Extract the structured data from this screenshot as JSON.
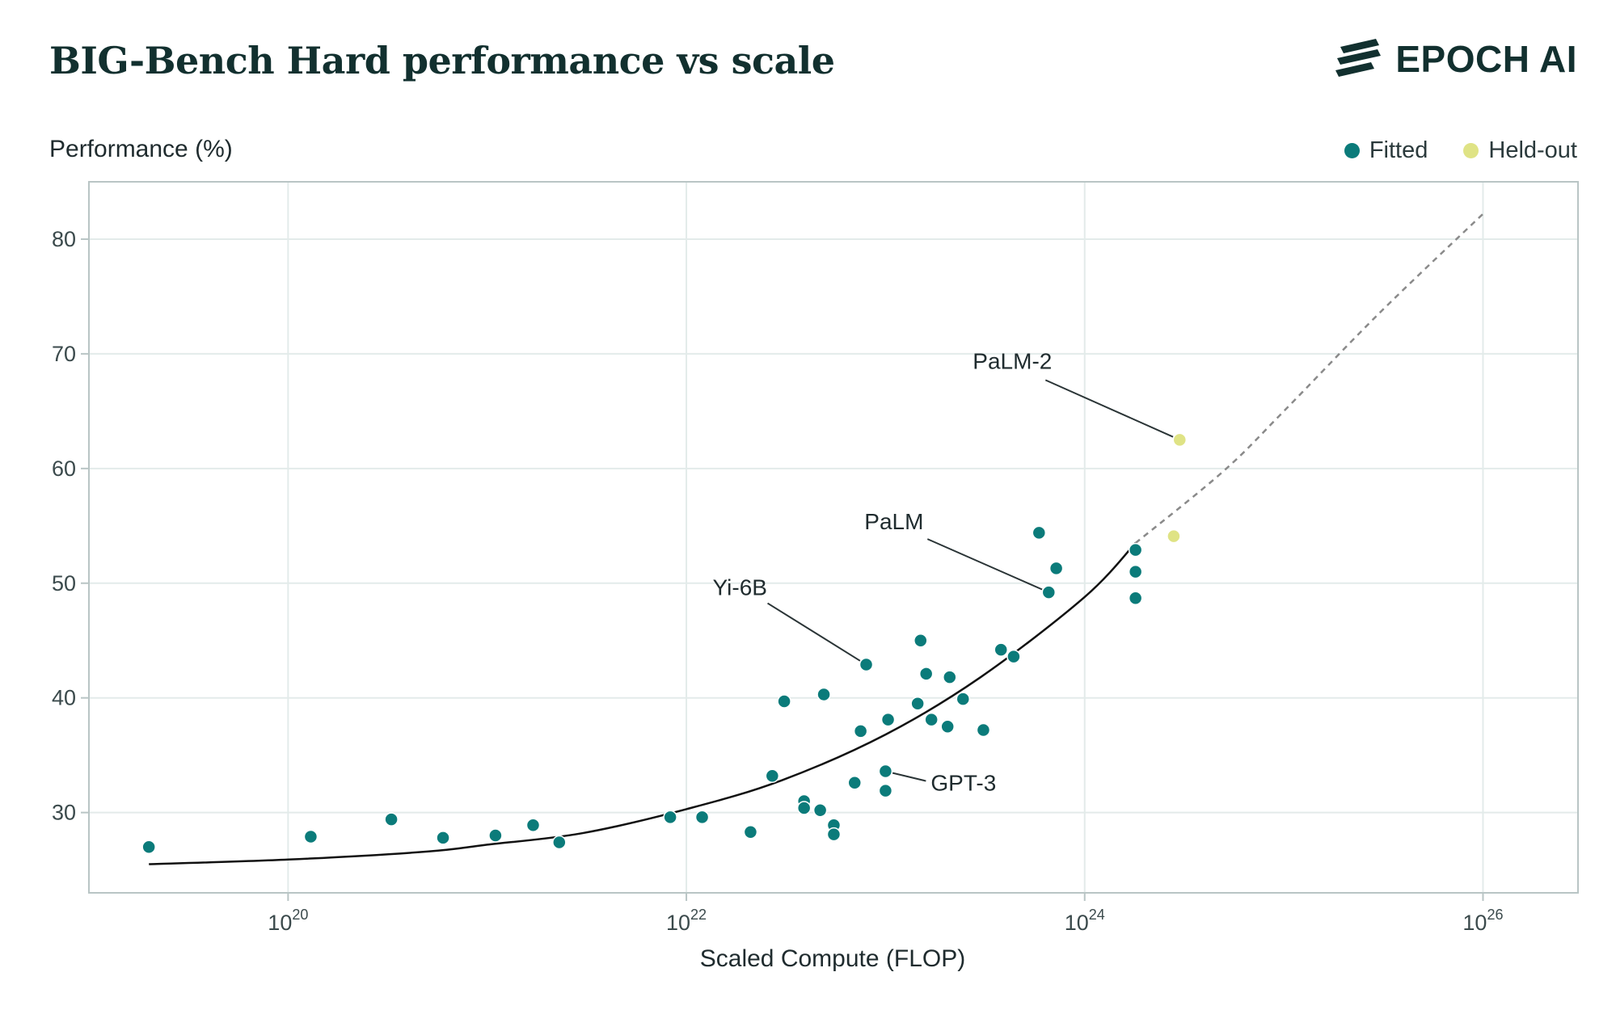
{
  "header": {
    "title": "BIG-Bench Hard performance vs scale",
    "brand": "EPOCH AI",
    "brand_icon": "epoch-stripes-logo"
  },
  "colors": {
    "fitted": "#0b7b7a",
    "heldout": "#dfe385",
    "fit_line": "#111111",
    "extrapolation": "#8a8a8a",
    "grid": "#e3ebea",
    "frame": "#b9c5c5"
  },
  "chart_data": {
    "type": "scatter",
    "title": "BIG-Bench Hard performance vs scale",
    "xlabel": "Scaled Compute (FLOP)",
    "ylabel": "Performance (%)",
    "x_scale": "log10",
    "xlim": [
      1e+19,
      3e+26
    ],
    "ylim": [
      23,
      85
    ],
    "x_ticks": [
      {
        "value": 1e+20,
        "base": "10",
        "exp": "20"
      },
      {
        "value": 1e+22,
        "base": "10",
        "exp": "22"
      },
      {
        "value": 1e+24,
        "base": "10",
        "exp": "24"
      },
      {
        "value": 1e+26,
        "base": "10",
        "exp": "26"
      }
    ],
    "y_ticks": [
      30,
      40,
      50,
      60,
      70,
      80
    ],
    "grid": true,
    "legend_position": "top-right",
    "legend": [
      "Fitted",
      "Held-out"
    ],
    "series": [
      {
        "name": "Fitted",
        "points": [
          {
            "x": 2e+19,
            "y": 27.0
          },
          {
            "x": 1.3e+20,
            "y": 27.9
          },
          {
            "x": 3.3e+20,
            "y": 29.4
          },
          {
            "x": 6e+20,
            "y": 27.8
          },
          {
            "x": 1.1e+21,
            "y": 28.0
          },
          {
            "x": 1.7e+21,
            "y": 28.9
          },
          {
            "x": 2.3e+21,
            "y": 27.4
          },
          {
            "x": 8.3e+21,
            "y": 29.6
          },
          {
            "x": 1.2e+22,
            "y": 29.6
          },
          {
            "x": 2.1e+22,
            "y": 28.3
          },
          {
            "x": 2.7e+22,
            "y": 33.2
          },
          {
            "x": 3.1e+22,
            "y": 39.7
          },
          {
            "x": 3.9e+22,
            "y": 31.0
          },
          {
            "x": 3.9e+22,
            "y": 30.4
          },
          {
            "x": 4.7e+22,
            "y": 30.2
          },
          {
            "x": 4.9e+22,
            "y": 40.3
          },
          {
            "x": 5.5e+22,
            "y": 28.9
          },
          {
            "x": 5.5e+22,
            "y": 28.1
          },
          {
            "x": 7e+22,
            "y": 32.6
          },
          {
            "x": 7.5e+22,
            "y": 37.1
          },
          {
            "x": 8e+22,
            "y": 42.9
          },
          {
            "x": 1e+23,
            "y": 33.6
          },
          {
            "x": 1e+23,
            "y": 31.9
          },
          {
            "x": 1.03e+23,
            "y": 38.1
          },
          {
            "x": 1.45e+23,
            "y": 39.5
          },
          {
            "x": 1.5e+23,
            "y": 45.0
          },
          {
            "x": 1.6e+23,
            "y": 42.1
          },
          {
            "x": 1.7e+23,
            "y": 38.1
          },
          {
            "x": 2.05e+23,
            "y": 37.5
          },
          {
            "x": 2.1e+23,
            "y": 41.8
          },
          {
            "x": 2.45e+23,
            "y": 39.9
          },
          {
            "x": 3.1e+23,
            "y": 37.2
          },
          {
            "x": 3.8e+23,
            "y": 44.2
          },
          {
            "x": 4.4e+23,
            "y": 43.6
          },
          {
            "x": 5.9e+23,
            "y": 54.4
          },
          {
            "x": 6.6e+23,
            "y": 49.2
          },
          {
            "x": 7.2e+23,
            "y": 51.3
          },
          {
            "x": 1.8e+24,
            "y": 52.9
          },
          {
            "x": 1.8e+24,
            "y": 51.0
          },
          {
            "x": 1.8e+24,
            "y": 48.7
          }
        ]
      },
      {
        "name": "Held-out",
        "points": [
          {
            "x": 3e+24,
            "y": 62.5
          },
          {
            "x": 2.8e+24,
            "y": 54.1
          }
        ]
      }
    ],
    "fit_curve": [
      {
        "x": 2e+19,
        "y": 25.5
      },
      {
        "x": 1e+20,
        "y": 25.9
      },
      {
        "x": 5e+20,
        "y": 26.6
      },
      {
        "x": 1e+21,
        "y": 27.2
      },
      {
        "x": 3e+21,
        "y": 28.2
      },
      {
        "x": 1e+22,
        "y": 30.3
      },
      {
        "x": 3e+22,
        "y": 32.8
      },
      {
        "x": 1e+23,
        "y": 36.8
      },
      {
        "x": 3e+23,
        "y": 41.8
      },
      {
        "x": 1e+24,
        "y": 48.8
      },
      {
        "x": 1.8e+24,
        "y": 53.5
      }
    ],
    "extrapolation_curve": [
      {
        "x": 1.8e+24,
        "y": 53.5
      },
      {
        "x": 5e+24,
        "y": 59.8
      },
      {
        "x": 1e+25,
        "y": 65.0
      },
      {
        "x": 3e+25,
        "y": 73.5
      },
      {
        "x": 1e+26,
        "y": 82.2
      }
    ],
    "annotations": [
      {
        "label": "PaLM-2",
        "x": 3e+24,
        "y": 62.5
      },
      {
        "label": "PaLM",
        "x": 6.6e+23,
        "y": 49.2
      },
      {
        "label": "Yi-6B",
        "x": 8e+22,
        "y": 42.9
      },
      {
        "label": "GPT-3",
        "x": 1e+23,
        "y": 33.6
      }
    ]
  }
}
